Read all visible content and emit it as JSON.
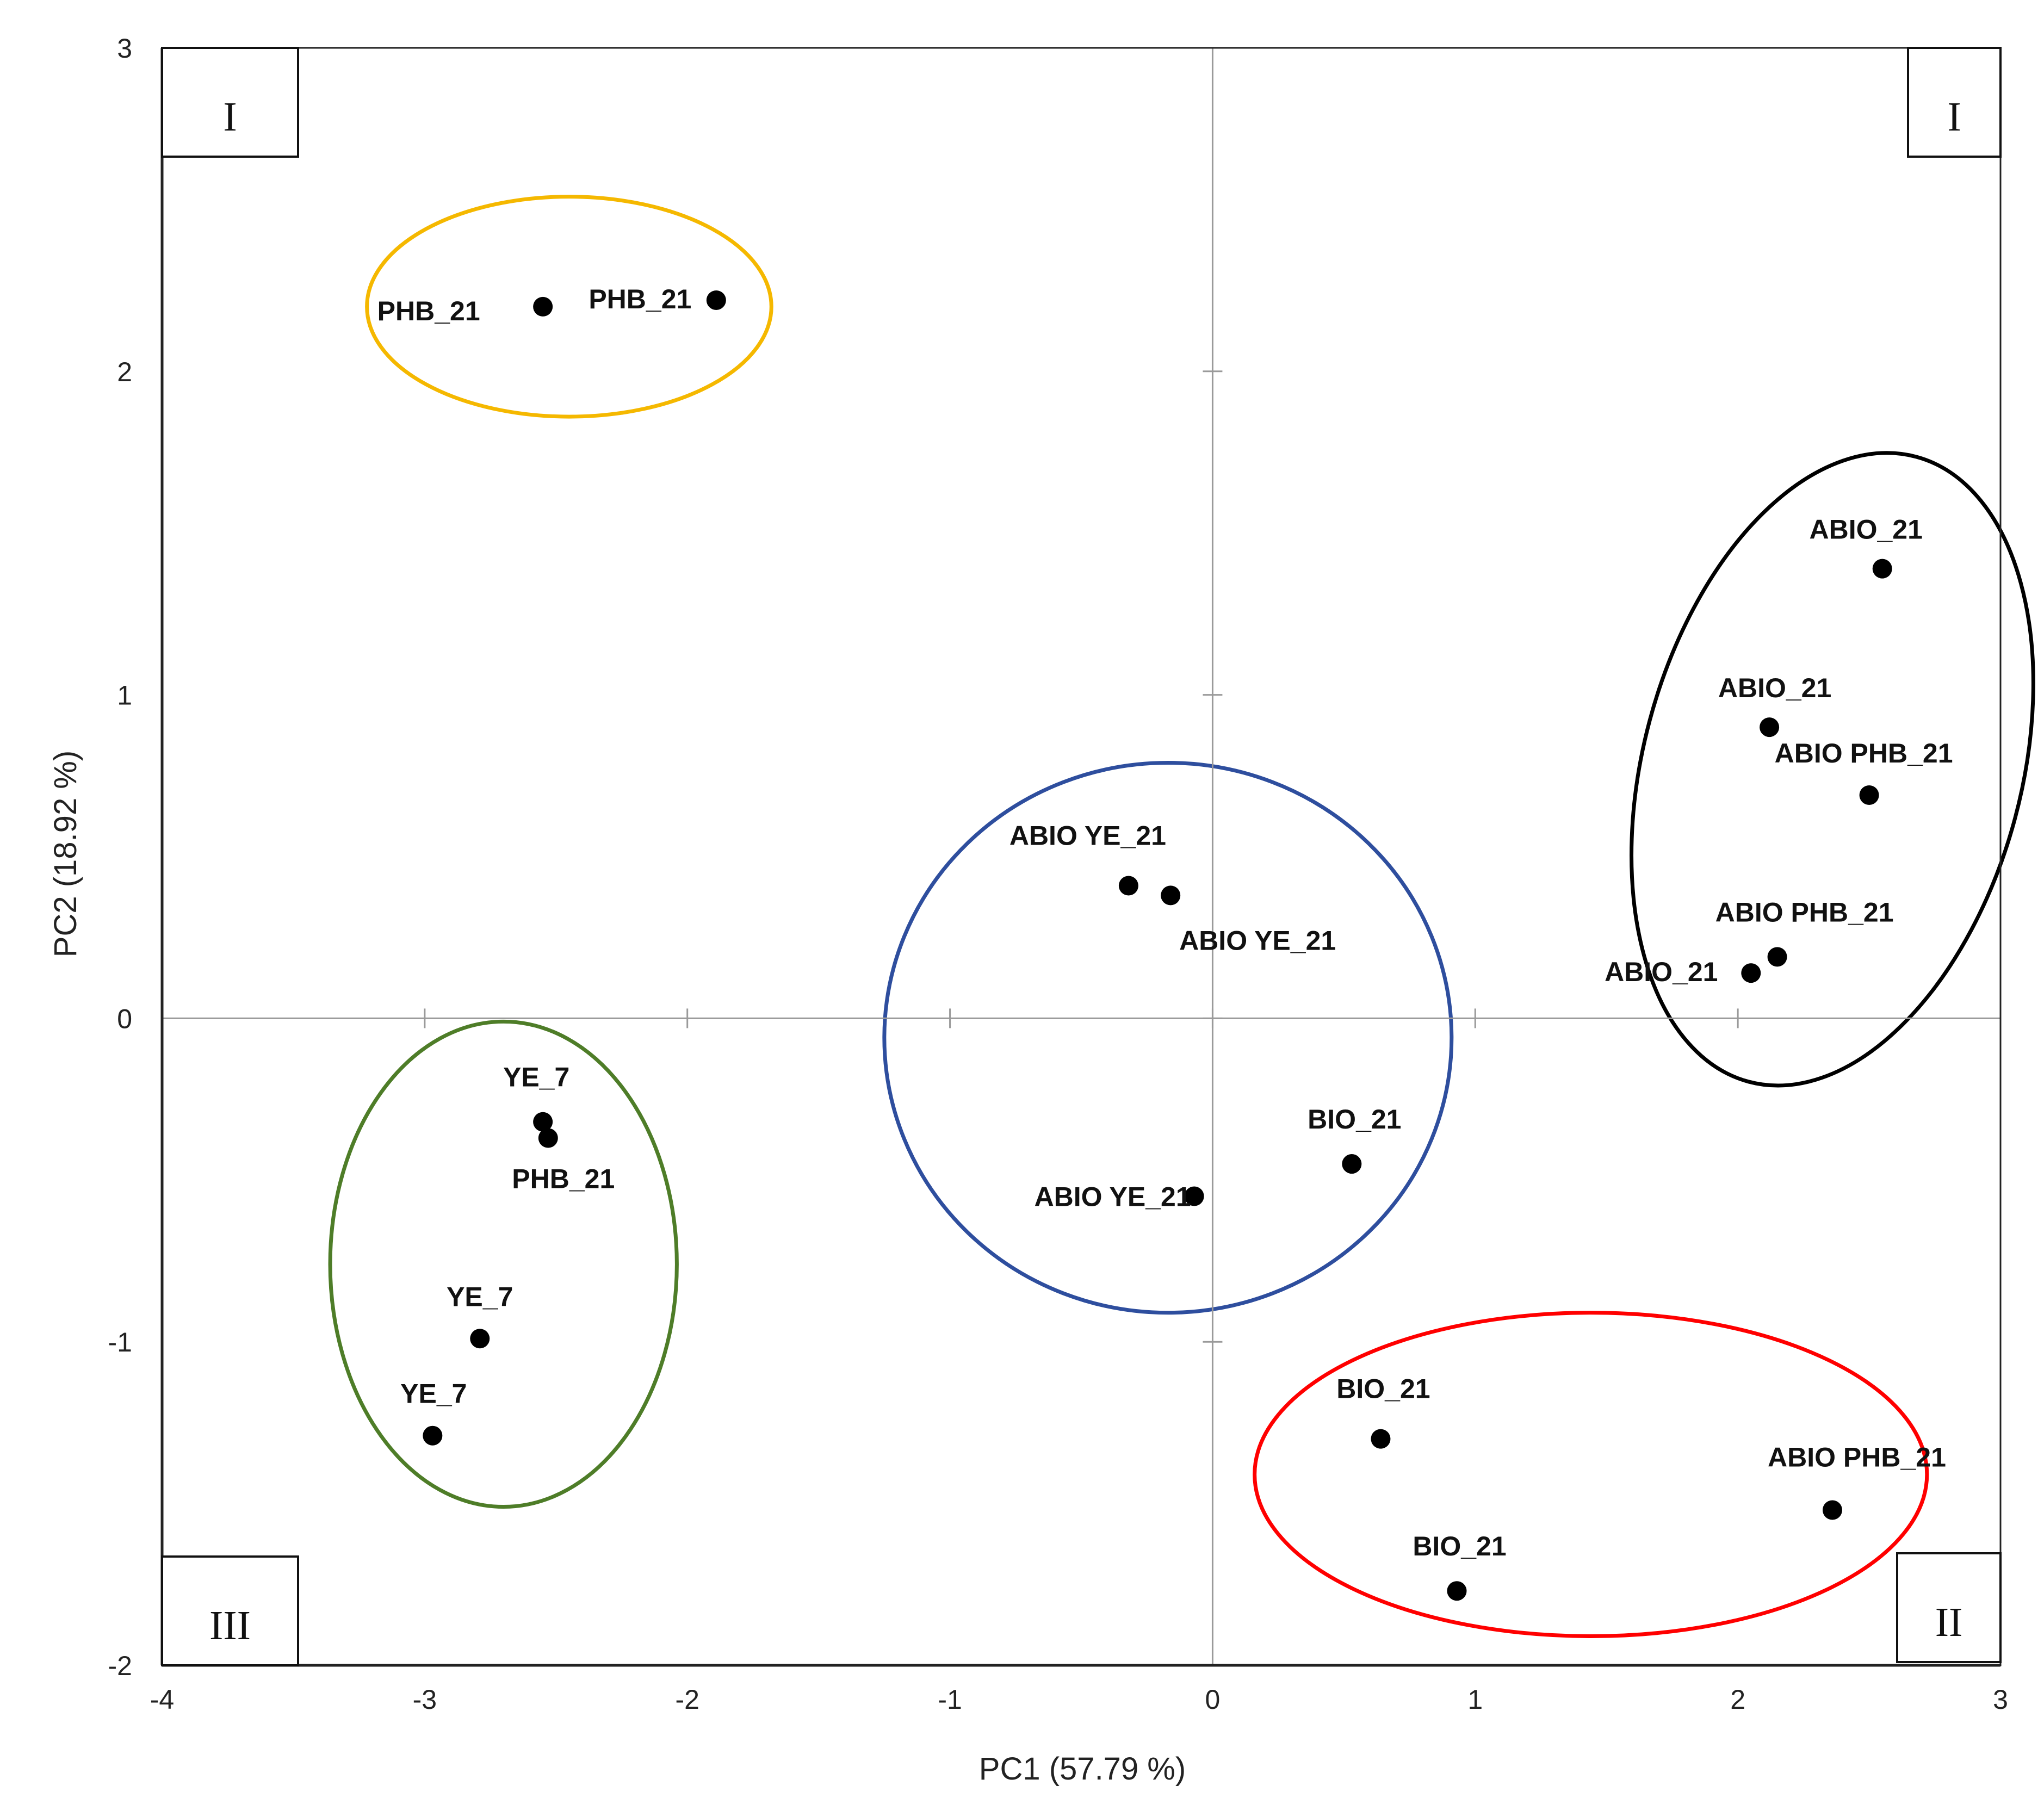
{
  "chart_data": {
    "type": "scatter",
    "title": "",
    "xlabel": "PC1 (57.79 %)",
    "ylabel": "PC2 (18.92 %)",
    "xlim": [
      -4,
      3
    ],
    "ylim": [
      -2,
      3
    ],
    "x_ticks": [
      "-4",
      "-3",
      "-2",
      "-1",
      "0",
      "1",
      "2",
      "3"
    ],
    "y_ticks": [
      "-2",
      "-1",
      "0",
      "1",
      "2",
      "3"
    ],
    "grid": false,
    "zero_lines": true,
    "points": [
      {
        "label": "PHB_21",
        "x": -2.55,
        "y": 2.2
      },
      {
        "label": "PHB_21",
        "x": -1.89,
        "y": 2.22
      },
      {
        "label": "ABIO_21",
        "x": 2.55,
        "y": 1.39
      },
      {
        "label": "ABIO_21",
        "x": 2.12,
        "y": 0.9
      },
      {
        "label": "ABIO PHB_21",
        "x": 2.5,
        "y": 0.69
      },
      {
        "label": "ABIO PHB_21",
        "x": 2.15,
        "y": 0.19
      },
      {
        "label": "ABIO_21",
        "x": 2.05,
        "y": 0.14
      },
      {
        "label": "ABIO YE_21",
        "x": -0.32,
        "y": 0.41
      },
      {
        "label": "ABIO YE_21",
        "x": -0.16,
        "y": 0.38
      },
      {
        "label": "BIO_21",
        "x": 0.53,
        "y": -0.45
      },
      {
        "label": "ABIO YE_21",
        "x": -0.07,
        "y": -0.55
      },
      {
        "label": "YE_7",
        "x": -2.55,
        "y": -0.32
      },
      {
        "label": "PHB_21",
        "x": -2.53,
        "y": -0.37
      },
      {
        "label": "YE_7",
        "x": -2.79,
        "y": -0.99
      },
      {
        "label": "YE_7",
        "x": -2.97,
        "y": -1.29
      },
      {
        "label": "BIO_21",
        "x": 0.64,
        "y": -1.3
      },
      {
        "label": "ABIO PHB_21",
        "x": 2.36,
        "y": -1.52
      },
      {
        "label": "BIO_21",
        "x": 0.93,
        "y": -1.77
      }
    ],
    "clusters": [
      {
        "color": "#F5B800",
        "cx": -2.45,
        "cy": 2.2,
        "rx": 0.77,
        "ry": 0.34
      },
      {
        "color": "#000000",
        "cx": 2.36,
        "cy": 0.77,
        "rx": 0.72,
        "ry": 1.0,
        "rotation": 15
      },
      {
        "color": "#2E4E9E",
        "cx": -0.17,
        "cy": -0.06,
        "rx": 1.08,
        "ry": 0.85
      },
      {
        "color": "#4E7D28",
        "cx": -2.7,
        "cy": -0.76,
        "rx": 0.66,
        "ry": 0.75
      },
      {
        "color": "#FF0000",
        "cx": 1.44,
        "cy": -1.41,
        "rx": 1.28,
        "ry": 0.5
      }
    ],
    "quadrant_labels": [
      {
        "text": "I",
        "position": "top-left"
      },
      {
        "text": "I",
        "position": "top-right"
      },
      {
        "text": "III",
        "position": "bottom-left"
      },
      {
        "text": "II",
        "position": "bottom-right"
      }
    ],
    "legend": "none"
  }
}
